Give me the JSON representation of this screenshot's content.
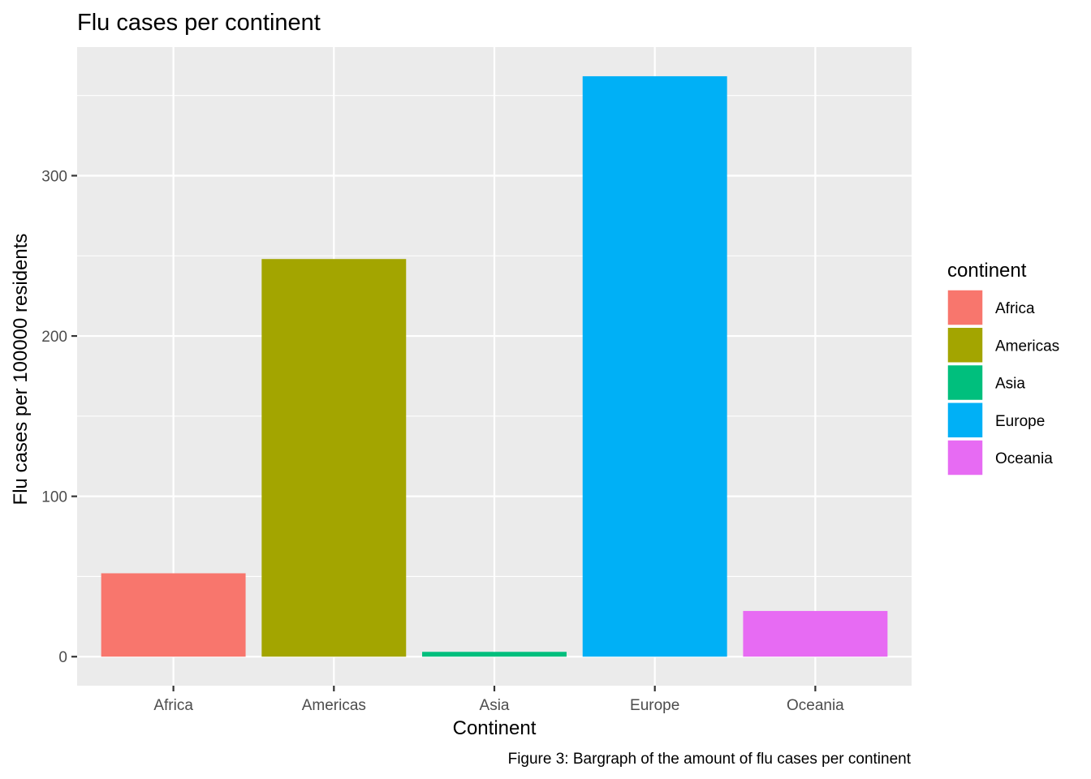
{
  "chart_data": {
    "type": "bar",
    "title": "Flu cases per continent",
    "xlabel": "Continent",
    "ylabel": "Flu cases per 100000 residents",
    "caption": "Figure 3: Bargraph of the amount of flu cases per continent",
    "categories": [
      "Africa",
      "Americas",
      "Asia",
      "Europe",
      "Oceania"
    ],
    "values": [
      52,
      248,
      3,
      362,
      28.5
    ],
    "colors": [
      "#F8766D",
      "#A3A500",
      "#00BF7D",
      "#00B0F6",
      "#E76BF3"
    ],
    "ylim": [
      -18.1,
      380.2
    ],
    "yticks": [
      0,
      100,
      200,
      300
    ],
    "ytick_labels": [
      "0",
      "100",
      "200",
      "300"
    ],
    "grid": true,
    "legend": {
      "title": "continent",
      "position": "right",
      "entries": [
        "Africa",
        "Americas",
        "Asia",
        "Europe",
        "Oceania"
      ]
    }
  }
}
